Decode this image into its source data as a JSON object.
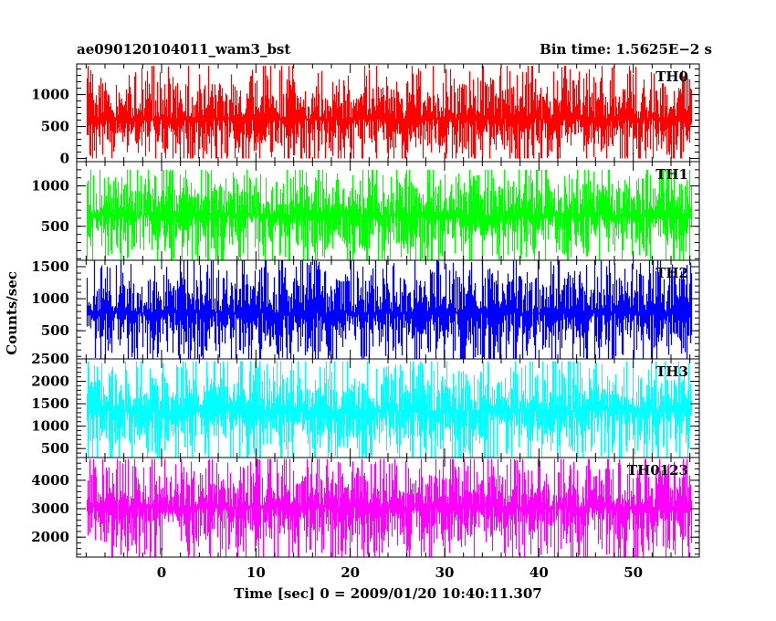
{
  "header": {
    "left_title": "ae090120104011_wam3_bst",
    "right_title": "Bin time: 1.5625E−2 s"
  },
  "chart_data": {
    "type": "line",
    "title": "ae090120104011_wam3_bst",
    "bin_time_label": "Bin time: 1.5625E−2 s",
    "xlabel": "Time [sec] 0 = 2009/01/20 10:40:11.307",
    "ylabel": "Counts/sec",
    "xlim": [
      -9,
      57
    ],
    "x_ticks": [
      0,
      10,
      20,
      30,
      40,
      50
    ],
    "x_data_range": [
      -7.9,
      56.1
    ],
    "bin_time_sec": 0.015625,
    "grid": false,
    "legend": "none",
    "panels": [
      {
        "name": "TH0",
        "color": "#ff0000",
        "ylim": [
          -50,
          1480
        ],
        "y_ticks": [
          0,
          500,
          1000
        ],
        "y_tick_labels": [
          "0",
          "500",
          "1000"
        ],
        "mean": 620,
        "min": 0,
        "max": 1450
      },
      {
        "name": "TH1",
        "color": "#00ff00",
        "ylim": [
          80,
          1300
        ],
        "y_ticks": [
          500,
          1000
        ],
        "y_tick_labels": [
          "500",
          "1000"
        ],
        "mean": 640,
        "min": 80,
        "max": 1200
      },
      {
        "name": "TH2",
        "color": "#0000ff",
        "ylim": [
          60,
          1600
        ],
        "y_ticks": [
          500,
          1000,
          1500
        ],
        "y_tick_labels": [
          "500",
          "1000",
          "1500"
        ],
        "mean": 780,
        "min": 60,
        "max": 1600
      },
      {
        "name": "TH3",
        "color": "#00ffff",
        "ylim": [
          300,
          2500
        ],
        "y_ticks": [
          500,
          1000,
          1500,
          2000,
          2500
        ],
        "y_tick_labels": [
          "500",
          "1000",
          "1500",
          "2000",
          "2500"
        ],
        "mean": 1350,
        "min": 300,
        "max": 2450
      },
      {
        "name": "TH0123",
        "color": "#ff00ff",
        "ylim": [
          1300,
          4800
        ],
        "y_ticks": [
          2000,
          3000,
          4000
        ],
        "y_tick_labels": [
          "2000",
          "3000",
          "4000"
        ],
        "mean": 3050,
        "min": 1300,
        "max": 4750
      }
    ]
  }
}
